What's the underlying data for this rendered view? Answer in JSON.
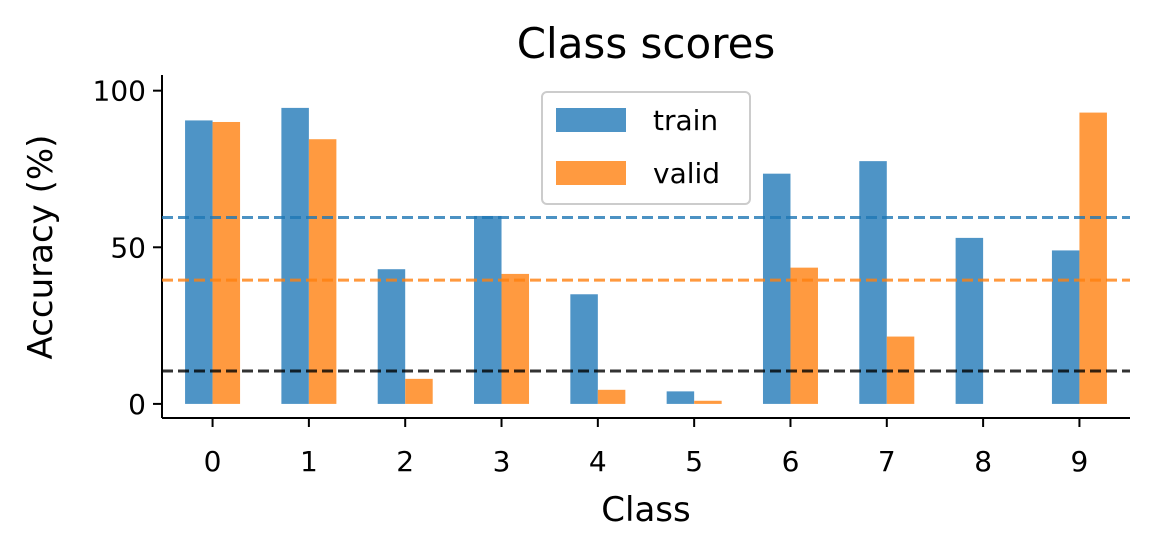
{
  "chart_data": {
    "type": "bar",
    "title": "Class scores",
    "xlabel": "Class",
    "ylabel": "Accuracy (%)",
    "categories": [
      "0",
      "1",
      "2",
      "3",
      "4",
      "5",
      "6",
      "7",
      "8",
      "9"
    ],
    "series": [
      {
        "name": "train",
        "color": "#4e94c6",
        "values": [
          90.5,
          94.5,
          43,
          60,
          35,
          4,
          73.5,
          77.5,
          53,
          49
        ]
      },
      {
        "name": "valid",
        "color": "#ff9a40",
        "values": [
          90,
          84.5,
          8,
          41.5,
          4.5,
          1,
          43.5,
          21.5,
          0,
          93
        ]
      }
    ],
    "reference_lines": [
      {
        "value": 59.5,
        "color": "#1f77b4",
        "style": "dashed"
      },
      {
        "value": 39.5,
        "color": "#ff7f0e",
        "style": "dashed"
      },
      {
        "value": 10.5,
        "color": "#000000",
        "style": "dashed"
      }
    ],
    "ylim": [
      -4.5,
      105
    ],
    "yticks": [
      0,
      50,
      100
    ],
    "grid": false,
    "legend_position": "top-center"
  }
}
